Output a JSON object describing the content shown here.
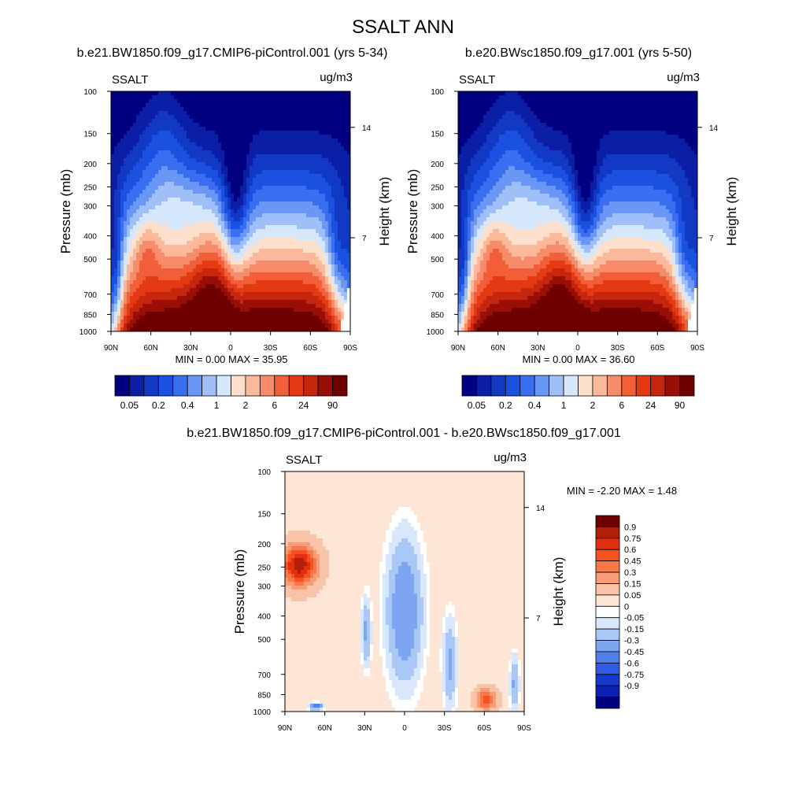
{
  "page": {
    "title": "SSALT ANN"
  },
  "chart_data": [
    {
      "type": "contour",
      "title": "b.e21.BW1850.f09_g17.CMIP6-piControl.001 (yrs 5-34)",
      "variable": "SSALT",
      "units": "ug/m3",
      "ylabel": "Pressure (mb)",
      "y2label": "Height (km)",
      "xticks": [
        "90N",
        "60N",
        "30N",
        "0",
        "30S",
        "60S",
        "90S"
      ],
      "yticks": [
        "100",
        "150",
        "200",
        "250",
        "300",
        "400",
        "500",
        "700",
        "850",
        "1000"
      ],
      "y2ticks": [
        "14",
        "7"
      ],
      "stats": {
        "min_label": "MIN =",
        "min": "0.00",
        "max_label": "MAX =",
        "max": "35.95"
      },
      "colorbar": {
        "labels": [
          "0.05",
          "0.2",
          "0.4",
          "1",
          "2",
          "6",
          "24",
          "90"
        ]
      }
    },
    {
      "type": "contour",
      "title": "b.e20.BWsc1850.f09_g17.001 (yrs 5-50)",
      "variable": "SSALT",
      "units": "ug/m3",
      "ylabel": "Pressure (mb)",
      "y2label": "Height (km)",
      "xticks": [
        "90N",
        "60N",
        "30N",
        "0",
        "30S",
        "60S",
        "90S"
      ],
      "yticks": [
        "100",
        "150",
        "200",
        "250",
        "300",
        "400",
        "500",
        "700",
        "850",
        "1000"
      ],
      "y2ticks": [
        "14",
        "7"
      ],
      "stats": {
        "min_label": "MIN =",
        "min": "0.00",
        "max_label": "MAX =",
        "max": "36.60"
      },
      "colorbar": {
        "labels": [
          "0.05",
          "0.2",
          "0.4",
          "1",
          "2",
          "6",
          "24",
          "90"
        ]
      }
    },
    {
      "type": "contour-difference",
      "title": "b.e21.BW1850.f09_g17.CMIP6-piControl.001 - b.e20.BWsc1850.f09_g17.001",
      "variable": "SSALT",
      "units": "ug/m3",
      "ylabel": "Pressure (mb)",
      "y2label": "Height (km)",
      "xticks": [
        "90N",
        "60N",
        "30N",
        "0",
        "30S",
        "60S",
        "90S"
      ],
      "yticks": [
        "100",
        "150",
        "200",
        "250",
        "300",
        "400",
        "500",
        "700",
        "850",
        "1000"
      ],
      "y2ticks": [
        "14",
        "7"
      ],
      "stats": {
        "min_label": "MIN =",
        "min": "-2.20",
        "max_label": "MAX =",
        "max": "1.48"
      },
      "colorbar": {
        "labels": [
          "0.9",
          "0.75",
          "0.6",
          "0.45",
          "0.3",
          "0.15",
          "0.05",
          "0",
          "-0.05",
          "-0.15",
          "-0.3",
          "-0.45",
          "-0.6",
          "-0.75",
          "-0.9"
        ]
      }
    }
  ],
  "palettes": {
    "main": [
      "#000080",
      "#0a1fa6",
      "#1239c4",
      "#1a51e0",
      "#3a6ef0",
      "#6a96f5",
      "#a0bef8",
      "#d6e6fb",
      "#fde0cc",
      "#fbb89b",
      "#f78c6a",
      "#f25e38",
      "#e33a14",
      "#c5260e",
      "#990f06",
      "#6e0000"
    ],
    "diff": [
      "#6e0000",
      "#b3200a",
      "#e0300f",
      "#f8501f",
      "#f9784a",
      "#f89c78",
      "#f9c3a8",
      "#fde6d5",
      "#ffffff",
      "#d8e7fb",
      "#aac8f6",
      "#7ea6f0",
      "#5080ec",
      "#2f5be8",
      "#1538cf",
      "#0b20b0",
      "#000080"
    ]
  }
}
